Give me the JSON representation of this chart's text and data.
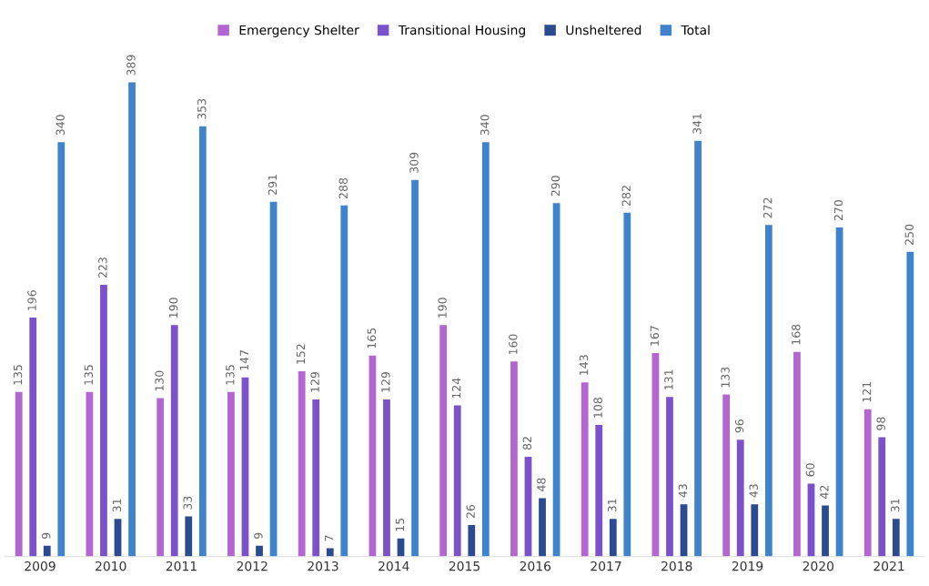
{
  "chart_data": {
    "type": "bar",
    "categories": [
      "2009",
      "2010",
      "2011",
      "2012",
      "2013",
      "2014",
      "2015",
      "2016",
      "2017",
      "2018",
      "2019",
      "2020",
      "2021"
    ],
    "series": [
      {
        "name": "Emergency Shelter",
        "color": "#b366cf",
        "values": [
          135,
          135,
          130,
          135,
          152,
          165,
          190,
          160,
          143,
          167,
          133,
          168,
          121
        ]
      },
      {
        "name": "Transitional Housing",
        "color": "#7b52c9",
        "values": [
          196,
          223,
          190,
          147,
          129,
          129,
          124,
          82,
          108,
          131,
          96,
          60,
          98
        ]
      },
      {
        "name": "Unsheltered",
        "color": "#2c4a8f",
        "values": [
          9,
          31,
          33,
          9,
          7,
          15,
          26,
          48,
          31,
          43,
          43,
          42,
          31
        ]
      },
      {
        "name": "Total",
        "color": "#3f83cc",
        "values": [
          340,
          389,
          353,
          291,
          288,
          309,
          340,
          290,
          282,
          341,
          272,
          270,
          250
        ]
      }
    ],
    "data_labels": true,
    "legend": "top",
    "grid": false
  }
}
